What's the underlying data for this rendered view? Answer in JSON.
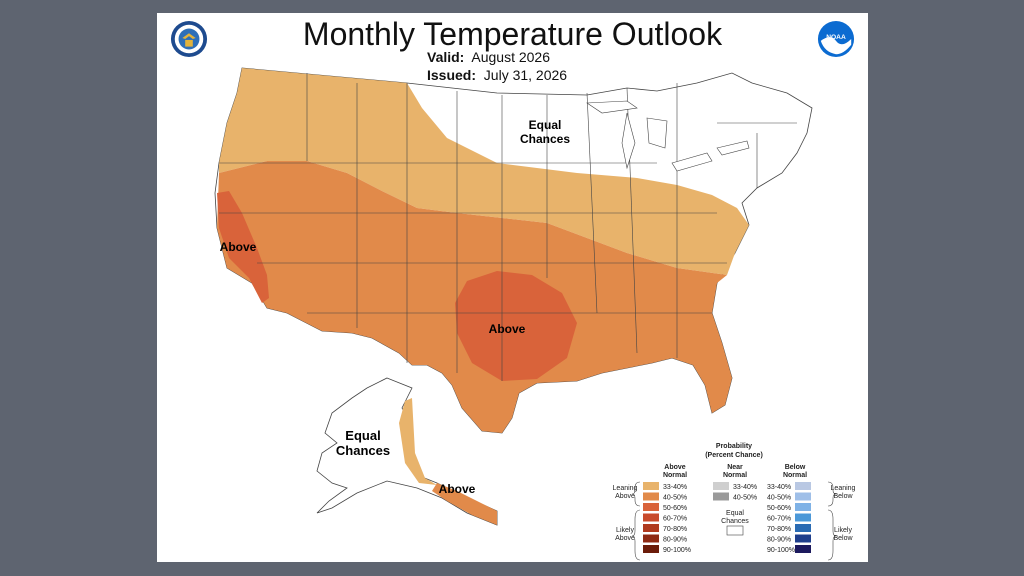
{
  "header": {
    "title": "Monthly Temperature Outlook",
    "valid_label": "Valid:",
    "valid_value": "August 2026",
    "issued_label": "Issued:",
    "issued_value": "July 31, 2026"
  },
  "logos": {
    "left": "commerce-seal-icon",
    "right": "noaa-logo-icon",
    "noaa_text": "NOAA"
  },
  "map_labels": {
    "equal_chances_conus_1": "Equal",
    "equal_chances_conus_2": "Chances",
    "above_california": "Above",
    "above_southplains": "Above",
    "equal_chances_alaska_1": "Equal",
    "equal_chances_alaska_2": "Chances",
    "above_alaska": "Above"
  },
  "legend": {
    "title_1": "Probability",
    "title_2": "(Percent Chance)",
    "col_above_1": "Above",
    "col_above_2": "Normal",
    "col_near_1": "Near",
    "col_near_2": "Normal",
    "col_below_1": "Below",
    "col_below_2": "Normal",
    "leaning_above_1": "Leaning",
    "leaning_above_2": "Above",
    "likely_above_1": "Likely",
    "likely_above_2": "Above",
    "leaning_below_1": "Leaning",
    "leaning_below_2": "Below",
    "likely_below_1": "Likely",
    "likely_below_2": "Below",
    "equal_1": "Equal",
    "equal_2": "Chances",
    "above": [
      {
        "label": "33-40%",
        "color": "#e8b36b"
      },
      {
        "label": "40-50%",
        "color": "#e18a4a"
      },
      {
        "label": "50-60%",
        "color": "#d9633a"
      },
      {
        "label": "60-70%",
        "color": "#c84a2c"
      },
      {
        "label": "70-80%",
        "color": "#b03a1f"
      },
      {
        "label": "80-90%",
        "color": "#8e2a14"
      },
      {
        "label": "90-100%",
        "color": "#6b1c0a"
      }
    ],
    "near": [
      {
        "label": "33-40%",
        "color": "#cfcfcf"
      },
      {
        "label": "40-50%",
        "color": "#9a9a9a"
      }
    ],
    "below": [
      {
        "label": "33-40%",
        "color": "#b9c8e3"
      },
      {
        "label": "40-50%",
        "color": "#9fbfe8"
      },
      {
        "label": "50-60%",
        "color": "#7fb2e6"
      },
      {
        "label": "60-70%",
        "color": "#4b98d8"
      },
      {
        "label": "70-80%",
        "color": "#2a6bb3"
      },
      {
        "label": "80-90%",
        "color": "#1f3f8c"
      },
      {
        "label": "90-100%",
        "color": "#1c1a5e"
      }
    ]
  },
  "colors": {
    "lean_above": "#e8b36b",
    "likely_above_40": "#e18a4a",
    "above_50": "#d9633a",
    "background": "#5e6470"
  }
}
